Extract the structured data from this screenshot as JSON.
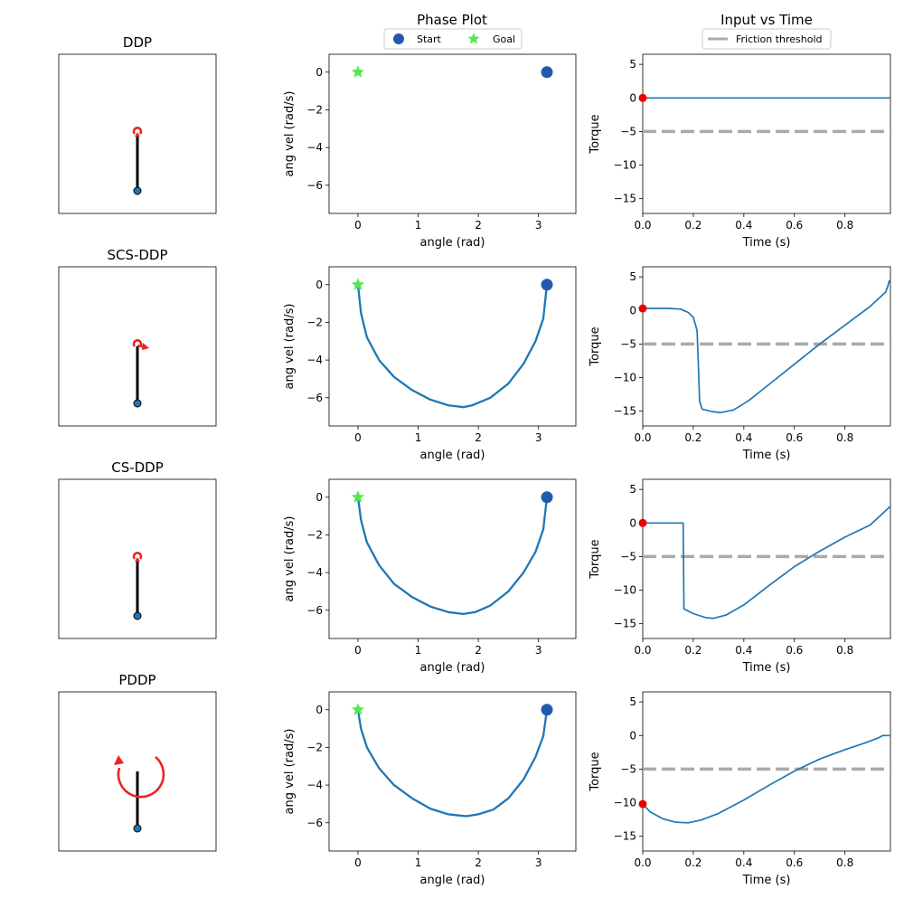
{
  "headers": {
    "phase": "Phase Plot",
    "input": "Input vs Time"
  },
  "legends": {
    "phase": [
      "Start",
      "Goal"
    ],
    "input": [
      "Friction threshold"
    ]
  },
  "colors": {
    "line": "#1f77b4",
    "start_marker": "#1f5aaf",
    "goal_marker": "#55e555",
    "arrow": "#ee2222",
    "pivot": "#1f77b4",
    "threshold": "#aaaaaa",
    "initial_torque_dot": "#ee0000"
  },
  "rows": [
    {
      "title": "DDP",
      "arrow": "small"
    },
    {
      "title": "SCS-DDP",
      "arrow": "small-right"
    },
    {
      "title": "CS-DDP",
      "arrow": "small"
    },
    {
      "title": "PDDP",
      "arrow": "circle"
    }
  ],
  "chart_data": [
    {
      "type": "line",
      "name": "phase",
      "xlabel": "angle (rad)",
      "ylabel": "ang vel (rad/s)",
      "xlim": [
        -0.48,
        3.62
      ],
      "ylim": [
        -7.5,
        0.95
      ],
      "xticks": [
        0,
        1,
        2,
        3
      ],
      "yticks": [
        0,
        -2,
        -4,
        -6
      ],
      "start": {
        "x": 3.14,
        "y": 0
      },
      "goal": {
        "x": 0,
        "y": 0
      },
      "series": [
        {
          "points": []
        },
        {
          "points": [
            [
              3.14,
              0
            ],
            [
              3.08,
              -1.8
            ],
            [
              2.95,
              -3.0
            ],
            [
              2.75,
              -4.2
            ],
            [
              2.5,
              -5.25
            ],
            [
              2.2,
              -6.0
            ],
            [
              1.9,
              -6.4
            ],
            [
              1.75,
              -6.5
            ],
            [
              1.5,
              -6.4
            ],
            [
              1.2,
              -6.1
            ],
            [
              0.9,
              -5.6
            ],
            [
              0.6,
              -4.9
            ],
            [
              0.35,
              -4.0
            ],
            [
              0.15,
              -2.8
            ],
            [
              0.05,
              -1.5
            ],
            [
              0,
              0
            ]
          ]
        },
        {
          "points": [
            [
              3.14,
              0
            ],
            [
              3.08,
              -1.7
            ],
            [
              2.95,
              -2.9
            ],
            [
              2.75,
              -4.0
            ],
            [
              2.5,
              -5.0
            ],
            [
              2.2,
              -5.75
            ],
            [
              1.95,
              -6.1
            ],
            [
              1.75,
              -6.2
            ],
            [
              1.5,
              -6.1
            ],
            [
              1.2,
              -5.8
            ],
            [
              0.9,
              -5.3
            ],
            [
              0.6,
              -4.6
            ],
            [
              0.35,
              -3.6
            ],
            [
              0.15,
              -2.4
            ],
            [
              0.05,
              -1.2
            ],
            [
              0,
              0
            ]
          ]
        },
        {
          "points": [
            [
              3.14,
              0
            ],
            [
              3.08,
              -1.4
            ],
            [
              2.95,
              -2.5
            ],
            [
              2.75,
              -3.7
            ],
            [
              2.5,
              -4.7
            ],
            [
              2.25,
              -5.3
            ],
            [
              2.0,
              -5.55
            ],
            [
              1.8,
              -5.65
            ],
            [
              1.5,
              -5.55
            ],
            [
              1.2,
              -5.25
            ],
            [
              0.9,
              -4.7
            ],
            [
              0.6,
              -4.0
            ],
            [
              0.35,
              -3.1
            ],
            [
              0.15,
              -2.0
            ],
            [
              0.05,
              -1.0
            ],
            [
              0,
              0
            ]
          ]
        }
      ]
    },
    {
      "type": "line",
      "name": "input",
      "xlabel": "Time (s)",
      "ylabel": "Torque",
      "xlim": [
        0,
        0.98
      ],
      "ylim": [
        -17.2,
        6.5
      ],
      "xticks": [
        0.0,
        0.2,
        0.4,
        0.6,
        0.8
      ],
      "yticks": [
        5,
        0,
        -5,
        -10,
        -15
      ],
      "threshold": -5,
      "series": [
        {
          "points": [
            [
              0,
              0
            ],
            [
              0.98,
              0
            ]
          ]
        },
        {
          "points": [
            [
              0,
              0.3
            ],
            [
              0.1,
              0.3
            ],
            [
              0.15,
              0.2
            ],
            [
              0.18,
              -0.3
            ],
            [
              0.2,
              -1.0
            ],
            [
              0.215,
              -3.0
            ],
            [
              0.22,
              -8
            ],
            [
              0.225,
              -13.5
            ],
            [
              0.235,
              -14.7
            ],
            [
              0.28,
              -15.1
            ],
            [
              0.31,
              -15.2
            ],
            [
              0.36,
              -14.8
            ],
            [
              0.42,
              -13.4
            ],
            [
              0.5,
              -11.0
            ],
            [
              0.6,
              -8.0
            ],
            [
              0.7,
              -5.0
            ],
            [
              0.8,
              -2.2
            ],
            [
              0.9,
              0.6
            ],
            [
              0.96,
              2.7
            ],
            [
              0.97,
              3.6
            ],
            [
              0.975,
              4.4
            ],
            [
              0.98,
              4.2
            ]
          ]
        },
        {
          "points": [
            [
              0,
              0
            ],
            [
              0.16,
              0
            ],
            [
              0.163,
              -12.8
            ],
            [
              0.2,
              -13.5
            ],
            [
              0.25,
              -14.1
            ],
            [
              0.28,
              -14.2
            ],
            [
              0.33,
              -13.7
            ],
            [
              0.4,
              -12.2
            ],
            [
              0.5,
              -9.3
            ],
            [
              0.6,
              -6.5
            ],
            [
              0.7,
              -4.2
            ],
            [
              0.8,
              -2.1
            ],
            [
              0.9,
              -0.3
            ],
            [
              0.98,
              2.5
            ]
          ]
        },
        {
          "points": [
            [
              0,
              -10.2
            ],
            [
              0.03,
              -11.4
            ],
            [
              0.08,
              -12.4
            ],
            [
              0.13,
              -12.9
            ],
            [
              0.18,
              -13.0
            ],
            [
              0.23,
              -12.6
            ],
            [
              0.3,
              -11.6
            ],
            [
              0.4,
              -9.6
            ],
            [
              0.5,
              -7.4
            ],
            [
              0.6,
              -5.3
            ],
            [
              0.7,
              -3.5
            ],
            [
              0.8,
              -2.1
            ],
            [
              0.88,
              -1.1
            ],
            [
              0.93,
              -0.4
            ],
            [
              0.95,
              0
            ],
            [
              0.98,
              0
            ]
          ]
        }
      ]
    }
  ]
}
